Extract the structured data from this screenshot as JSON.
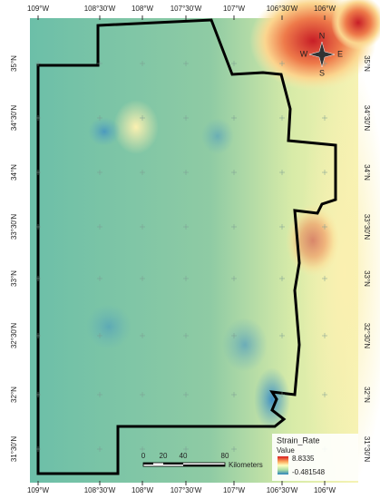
{
  "map": {
    "longitude_labels": [
      "109°W",
      "108°30'W",
      "108°W",
      "107°30'W",
      "107°W",
      "106°30'W",
      "106°W"
    ],
    "latitude_labels": [
      "35°N",
      "34°30'N",
      "34°N",
      "33°30'N",
      "33°N",
      "32°30'N",
      "32°N",
      "31°30'N"
    ],
    "legend": {
      "title": "Strain_Rate",
      "subtitle": "Value",
      "max": "8.8335",
      "min": "-0.481548"
    },
    "scale_bar": {
      "ticks": [
        "0",
        "20",
        "40",
        "80"
      ],
      "unit": "Kilometers"
    },
    "compass": {
      "n": "N",
      "s": "S",
      "e": "E",
      "w": "W"
    }
  }
}
